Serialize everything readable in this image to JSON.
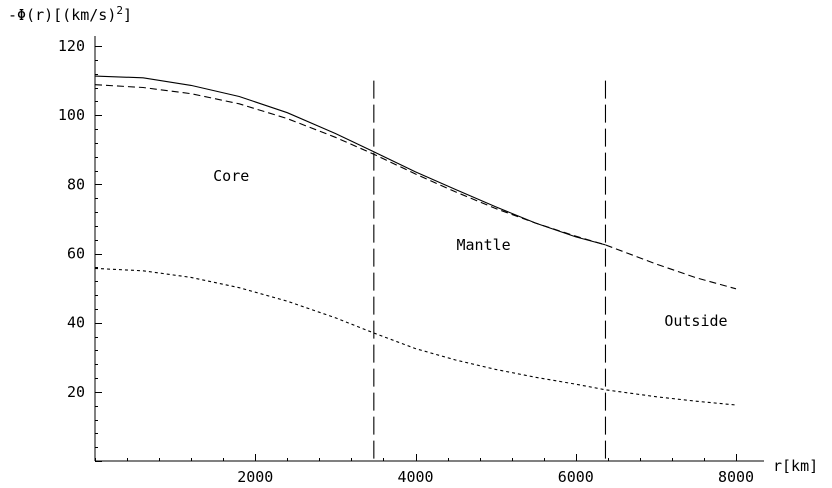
{
  "chart_data": {
    "type": "line",
    "ylabel": "-Φ(r) [ (km/s) 2 ]",
    "ylabel_parts": {
      "main": "-Φ(r)[(km/s)",
      "sup": "2",
      "close": "]"
    },
    "xlabel": "r[km]",
    "xlim": [
      0,
      8000
    ],
    "ylim": [
      0,
      120
    ],
    "xticks": [
      2000,
      4000,
      6000,
      8000
    ],
    "yticks": [
      20,
      40,
      60,
      80,
      100,
      120
    ],
    "grid": false,
    "series": [
      {
        "style": "solid",
        "x": [
          0,
          600,
          1200,
          1800,
          2400,
          3000,
          3480,
          4000,
          4500,
          5000,
          5500,
          6000,
          6371
        ],
        "y": [
          111.3,
          110.8,
          108.6,
          105.4,
          100.7,
          94.7,
          89.4,
          83.6,
          78.5,
          73.5,
          68.8,
          64.8,
          62.5
        ]
      },
      {
        "style": "dashed",
        "x": [
          0,
          600,
          1200,
          1800,
          2400,
          3000,
          3480,
          4000,
          4500,
          5000,
          5500,
          6000,
          6371,
          7000,
          7500,
          8000
        ],
        "y": [
          108.8,
          108.0,
          106.2,
          103.3,
          99.0,
          93.6,
          88.7,
          83.0,
          77.8,
          73.0,
          68.8,
          65.0,
          62.5,
          57.0,
          53.0,
          49.8
        ]
      },
      {
        "style": "dotted",
        "x": [
          0,
          600,
          1200,
          1800,
          2400,
          3000,
          3480,
          4000,
          4500,
          5000,
          5500,
          6000,
          6371,
          7000,
          7500,
          8000
        ],
        "y": [
          55.7,
          55.0,
          53.1,
          50.1,
          46.2,
          41.4,
          37.0,
          32.5,
          29.2,
          26.5,
          24.2,
          22.2,
          20.6,
          18.6,
          17.3,
          16.2
        ]
      }
    ],
    "boundaries": [
      {
        "x": 3480,
        "y_top": 110
      },
      {
        "x": 6371,
        "y_top": 110
      }
    ],
    "annotations": [
      {
        "text": "Core",
        "x": 1700,
        "y": 81
      },
      {
        "text": "Mantle",
        "x": 4850,
        "y": 61
      },
      {
        "text": "Outside",
        "x": 7500,
        "y": 39
      }
    ]
  }
}
